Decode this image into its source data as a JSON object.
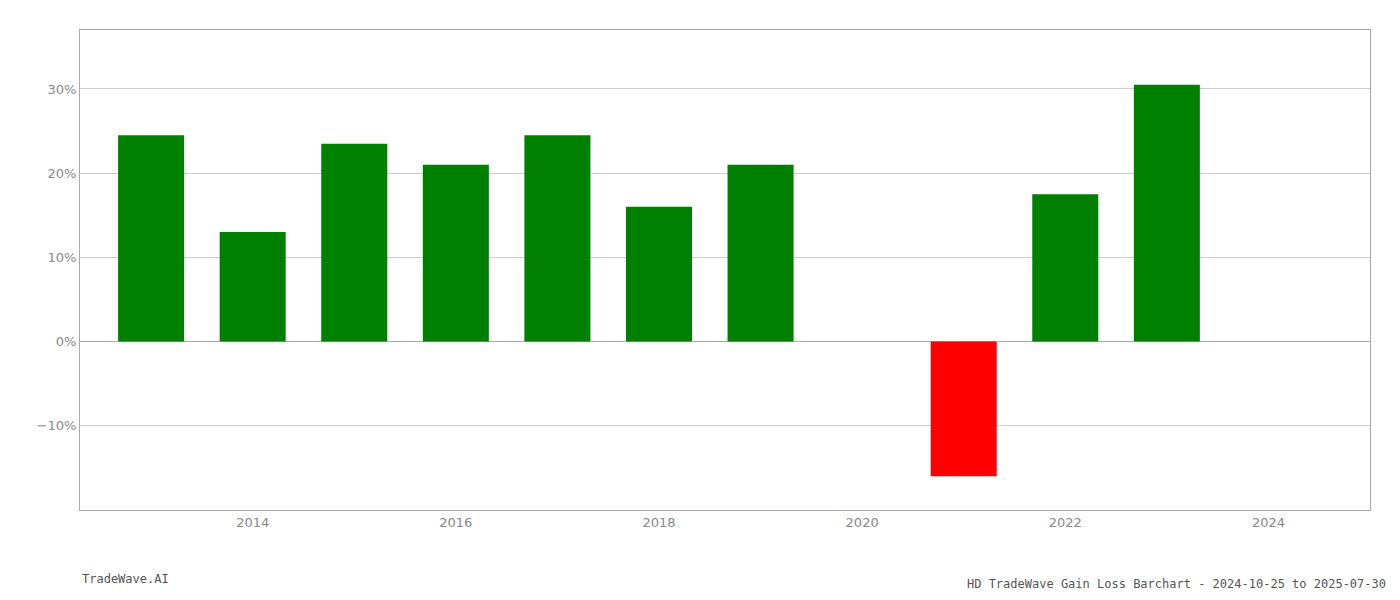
{
  "chart_data": {
    "type": "bar",
    "title": "HD TradeWave Gain Loss Barchart - 2024-10-25 to 2025-07-30",
    "annotations": [
      "TradeWave.AI"
    ],
    "x": [
      2013,
      2014,
      2015,
      2016,
      2017,
      2018,
      2019,
      2021,
      2022,
      2023
    ],
    "values": [
      24.5,
      13.0,
      23.5,
      21.0,
      24.5,
      16.0,
      21.0,
      -16.0,
      17.5,
      30.5
    ],
    "colors": [
      "#008000",
      "#008000",
      "#008000",
      "#008000",
      "#008000",
      "#008000",
      "#008000",
      "#ff0000",
      "#008000",
      "#008000"
    ],
    "xlim": [
      2012.3,
      2025.0
    ],
    "xticks": [
      2014,
      2016,
      2018,
      2020,
      2022,
      2024
    ],
    "ylim": [
      -20,
      37
    ],
    "yticks": [
      {
        "value": -10,
        "label": "−10%"
      },
      {
        "value": 0,
        "label": "0%"
      },
      {
        "value": 10,
        "label": "10%"
      },
      {
        "value": 20,
        "label": "20%"
      },
      {
        "value": 30,
        "label": "30%"
      }
    ],
    "grid": true
  }
}
